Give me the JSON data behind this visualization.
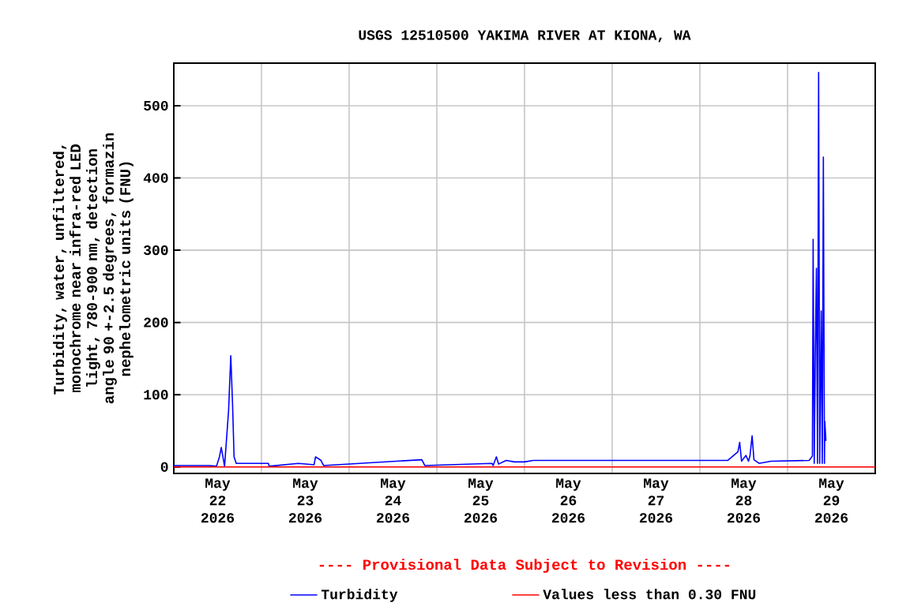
{
  "chart_data": {
    "type": "line",
    "title": "USGS 12510500 YAKIMA RIVER AT KIONA, WA",
    "ylabel": "Turbidity, water, unfiltered, monochrome near infra-red LED light, 780-900 nm, detection angle 90 +-2.5 degrees, formazin nephelometric units (FNU)",
    "annotations": [
      "---- Provisional Data Subject to Revision ----"
    ],
    "xlim": [
      "2026-05-22T00:00",
      "2026-05-30T00:00"
    ],
    "xticks": [
      {
        "value": "2026-05-23T00:00",
        "label": null
      },
      {
        "value": "2026-05-24T00:00",
        "label": null
      },
      {
        "value": "2026-05-25T00:00",
        "label": null
      },
      {
        "value": "2026-05-26T00:00",
        "label": null
      },
      {
        "value": "2026-05-27T00:00",
        "label": null
      },
      {
        "value": "2026-05-28T00:00",
        "label": null
      },
      {
        "value": "2026-05-29T00:00",
        "label": null
      },
      {
        "value": "2026-05-22T12:00",
        "label": "May 22 2026"
      },
      {
        "value": "2026-05-23T12:00",
        "label": "May 23 2026"
      },
      {
        "value": "2026-05-24T12:00",
        "label": "May 24 2026"
      },
      {
        "value": "2026-05-25T12:00",
        "label": "May 25 2026"
      },
      {
        "value": "2026-05-26T12:00",
        "label": "May 26 2026"
      },
      {
        "value": "2026-05-27T12:00",
        "label": "May 27 2026"
      },
      {
        "value": "2026-05-28T12:00",
        "label": "May 28 2026"
      },
      {
        "value": "2026-05-29T12:00",
        "label": "May 29 2026"
      }
    ],
    "ylim": [
      -9,
      559
    ],
    "yticks": [
      0,
      100,
      200,
      300,
      400,
      500
    ],
    "grid": true,
    "legend": "bottom",
    "series": [
      {
        "name": "Turbidity",
        "color": "#0000ff",
        "x": [
          "2026-05-22T00:00",
          "2026-05-22T09:36",
          "2026-05-22T11:42",
          "2026-05-22T12:30",
          "2026-05-22T13:00",
          "2026-05-22T13:54",
          "2026-05-22T15:00",
          "2026-05-22T15:36",
          "2026-05-22T16:06",
          "2026-05-22T16:30",
          "2026-05-22T17:06",
          "2026-05-23T01:54",
          "2026-05-23T02:06",
          "2026-05-23T10:06",
          "2026-05-23T14:24",
          "2026-05-23T14:48",
          "2026-05-23T16:18",
          "2026-05-23T17:00",
          "2026-05-24T19:54",
          "2026-05-24T20:42",
          "2026-05-25T15:06",
          "2026-05-25T15:24",
          "2026-05-25T16:18",
          "2026-05-25T16:54",
          "2026-05-25T19:00",
          "2026-05-25T21:12",
          "2026-05-26T00:00",
          "2026-05-26T02:24",
          "2026-05-26T02:54",
          "2026-05-28T07:36",
          "2026-05-28T10:24",
          "2026-05-28T10:54",
          "2026-05-28T11:24",
          "2026-05-28T12:36",
          "2026-05-28T13:18",
          "2026-05-28T13:42",
          "2026-05-28T14:18",
          "2026-05-28T14:48",
          "2026-05-28T16:12",
          "2026-05-28T19:30",
          "2026-05-29T05:54",
          "2026-05-29T06:48",
          "2026-05-29T07:00",
          "2026-05-29T07:18",
          "2026-05-29T07:36",
          "2026-05-29T07:54",
          "2026-05-29T08:12",
          "2026-05-29T08:30",
          "2026-05-29T08:48",
          "2026-05-29T09:12",
          "2026-05-29T09:30",
          "2026-05-29T09:48",
          "2026-05-29T10:06",
          "2026-05-29T10:12",
          "2026-05-29T10:30"
        ],
        "values": [
          2,
          2,
          1,
          14,
          27,
          1,
          78,
          154,
          85,
          14,
          5,
          5,
          1,
          5,
          3,
          14,
          9,
          2,
          10,
          2,
          5,
          2,
          14,
          4,
          9,
          7,
          7,
          9,
          9,
          9,
          21,
          34,
          8,
          16,
          8,
          15,
          43,
          10,
          5,
          8,
          9,
          15,
          315,
          5,
          161,
          275,
          5,
          546,
          5,
          216,
          5,
          429,
          5,
          63,
          36
        ]
      },
      {
        "name": "Values less than 0.30 FNU",
        "color": "#ff0000",
        "x": [
          "2026-05-22T00:00",
          "2026-05-30T00:00"
        ],
        "values": [
          0,
          0
        ]
      }
    ]
  }
}
